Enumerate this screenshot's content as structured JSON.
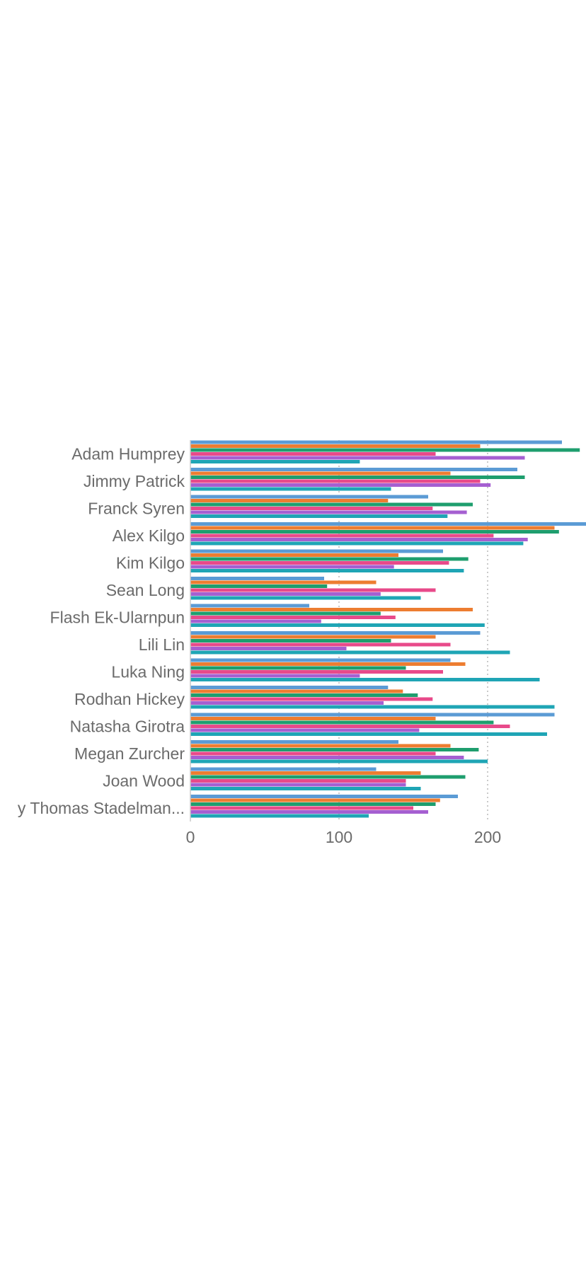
{
  "chart_data": {
    "type": "bar",
    "orientation": "horizontal",
    "categories": [
      "Adam Humprey",
      "Jimmy Patrick",
      "Franck Syren",
      "Alex Kilgo",
      "Kim Kilgo",
      "Sean Long",
      "Flash Ek-Ularnpun",
      "Lili Lin",
      "Luka Ning",
      "Rodhan Hickey",
      "Natasha Girotra",
      "Megan Zurcher",
      "Joan Wood",
      "y Thomas Stadelman..."
    ],
    "series": [
      {
        "color": "#5b9bd5",
        "values": [
          250,
          220,
          160,
          267,
          170,
          90,
          80,
          195,
          175,
          133,
          245,
          140,
          125,
          180
        ]
      },
      {
        "color": "#ed7d31",
        "values": [
          195,
          175,
          133,
          245,
          140,
          125,
          190,
          165,
          185,
          143,
          165,
          175,
          155,
          168
        ]
      },
      {
        "color": "#1e9e6e",
        "values": [
          262,
          225,
          190,
          248,
          187,
          92,
          128,
          135,
          145,
          153,
          204,
          194,
          185,
          165
        ]
      },
      {
        "color": "#e84a8a",
        "values": [
          165,
          195,
          163,
          204,
          174,
          165,
          138,
          175,
          170,
          163,
          215,
          165,
          145,
          150
        ]
      },
      {
        "color": "#a55fd1",
        "values": [
          225,
          202,
          186,
          227,
          137,
          128,
          88,
          105,
          114,
          130,
          154,
          184,
          145,
          160
        ]
      },
      {
        "color": "#1fa5b5",
        "values": [
          114,
          135,
          173,
          224,
          184,
          155,
          198,
          215,
          235,
          245,
          240,
          200,
          155,
          120
        ]
      }
    ],
    "xlim": [
      0,
      267
    ],
    "xticks": [
      "0",
      "100",
      "200"
    ],
    "grid": true,
    "legend": "none"
  }
}
